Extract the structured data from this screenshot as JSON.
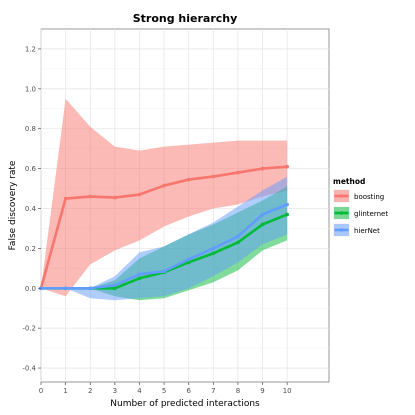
{
  "chart_data": {
    "type": "line",
    "title": "Strong hierarchy",
    "xlabel": "Number of predicted interactions",
    "ylabel": "False discovery rate",
    "x": [
      0,
      1,
      2,
      3,
      4,
      5,
      6,
      7,
      8,
      9,
      10
    ],
    "xlim": [
      0,
      11.7
    ],
    "ylim": [
      -0.47,
      1.3
    ],
    "x_ticks": [
      0,
      1,
      2,
      3,
      4,
      5,
      6,
      7,
      8,
      9,
      10
    ],
    "y_ticks": [
      -0.4,
      -0.2,
      0.0,
      0.2,
      0.4,
      0.6,
      0.8,
      1.0,
      1.2
    ],
    "grid": true,
    "legend_title": "method",
    "legend_position": "right",
    "series": [
      {
        "name": "boosting",
        "color": "#F8766D",
        "values": [
          0.0,
          0.45,
          0.46,
          0.455,
          0.47,
          0.515,
          0.545,
          0.56,
          0.58,
          0.6,
          0.61
        ],
        "lower": [
          0.0,
          -0.04,
          0.12,
          0.19,
          0.24,
          0.31,
          0.36,
          0.4,
          0.42,
          0.46,
          0.49
        ],
        "upper": [
          0.0,
          0.95,
          0.81,
          0.71,
          0.69,
          0.71,
          0.72,
          0.73,
          0.74,
          0.74,
          0.74
        ]
      },
      {
        "name": "glinternet",
        "color": "#00BA38",
        "values": [
          0.0,
          0.0,
          0.0,
          0.0,
          0.05,
          0.08,
          0.13,
          0.175,
          0.23,
          0.32,
          0.37
        ],
        "lower": [
          0.0,
          0.0,
          0.0,
          -0.04,
          -0.06,
          -0.05,
          -0.01,
          0.03,
          0.09,
          0.19,
          0.24
        ],
        "upper": [
          0.0,
          0.0,
          0.0,
          0.04,
          0.15,
          0.21,
          0.27,
          0.32,
          0.38,
          0.44,
          0.51
        ]
      },
      {
        "name": "hierNet",
        "color": "#619CFF",
        "values": [
          0.0,
          0.0,
          0.0,
          0.015,
          0.07,
          0.085,
          0.145,
          0.2,
          0.26,
          0.37,
          0.42
        ],
        "lower": [
          0.0,
          0.0,
          -0.05,
          -0.06,
          -0.05,
          -0.04,
          0.0,
          0.06,
          0.13,
          0.22,
          0.27
        ],
        "upper": [
          0.0,
          0.0,
          0.0,
          0.06,
          0.18,
          0.21,
          0.27,
          0.33,
          0.41,
          0.49,
          0.56
        ]
      }
    ]
  }
}
